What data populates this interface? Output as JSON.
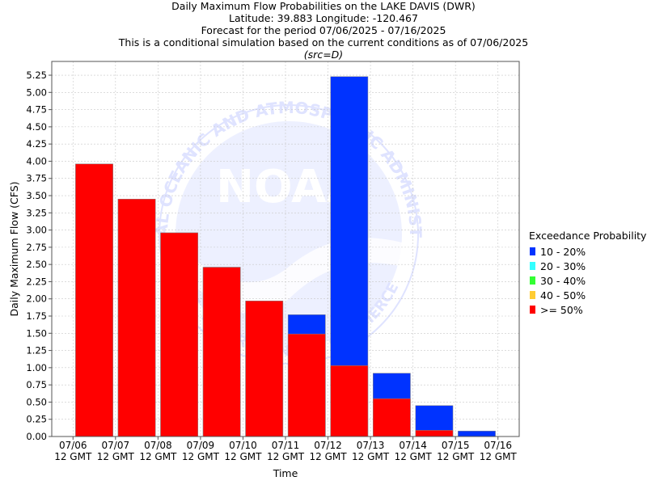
{
  "title_lines": [
    "Daily Maximum Flow Probabilities on the LAKE DAVIS (DWR)",
    "Latitude: 39.883 Longitude: -120.467",
    "Forecast for the period 07/06/2025 - 07/16/2025",
    "This is a conditional simulation based on the current conditions as of 07/06/2025"
  ],
  "source_note": "(src=D)",
  "watermark": {
    "logo": "noaa-logo",
    "text_lines": [
      "NATIONAL OCEANIC AND ATMOSPHERIC ADMINISTRATION",
      "NOAA",
      "U.S. DEPARTMENT OF COMMERCE"
    ],
    "color": "#dfe3ff"
  },
  "legend": {
    "title": "Exceedance Probability",
    "items": [
      {
        "label": "10 - 20%",
        "color": "#0033ff"
      },
      {
        "label": "20 - 30%",
        "color": "#33ffff"
      },
      {
        "label": "30 - 40%",
        "color": "#33ff33"
      },
      {
        "label": "40 - 50%",
        "color": "#ffcc33"
      },
      {
        "label": ">= 50%",
        "color": "#ff0000"
      }
    ]
  },
  "chart_data": {
    "type": "bar",
    "stacked_overlay": true,
    "xlabel": "Time",
    "ylabel": "Daily Maximum Flow (CFS)",
    "ylim": [
      0,
      5.45
    ],
    "y_ticks": [
      0.0,
      0.25,
      0.5,
      0.75,
      1.0,
      1.25,
      1.5,
      1.75,
      2.0,
      2.25,
      2.5,
      2.75,
      3.0,
      3.25,
      3.5,
      3.75,
      4.0,
      4.25,
      4.5,
      4.75,
      5.0,
      5.25
    ],
    "grid": true,
    "x_ticks": [
      [
        "07/06",
        "12 GMT"
      ],
      [
        "07/07",
        "12 GMT"
      ],
      [
        "07/08",
        "12 GMT"
      ],
      [
        "07/09",
        "12 GMT"
      ],
      [
        "07/10",
        "12 GMT"
      ],
      [
        "07/11",
        "12 GMT"
      ],
      [
        "07/12",
        "12 GMT"
      ],
      [
        "07/13",
        "12 GMT"
      ],
      [
        "07/14",
        "12 GMT"
      ],
      [
        "07/15",
        "12 GMT"
      ],
      [
        "07/16",
        "12 GMT"
      ]
    ],
    "series": [
      {
        "name": "10 - 20%",
        "color": "#0033ff",
        "values": [
          3.96,
          3.45,
          2.96,
          2.46,
          1.97,
          1.77,
          5.23,
          0.92,
          0.45,
          0.08
        ]
      },
      {
        "name": ">= 50%",
        "color": "#ff0000",
        "values": [
          3.96,
          3.45,
          2.96,
          2.46,
          1.97,
          1.49,
          1.03,
          0.55,
          0.09,
          0.0
        ]
      }
    ]
  }
}
